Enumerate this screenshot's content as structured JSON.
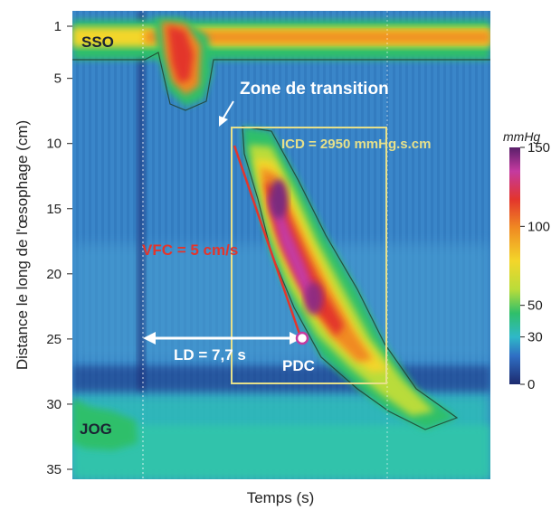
{
  "chart_data": {
    "type": "heatmap",
    "title": "",
    "xlabel": "Temps (s)",
    "ylabel": "Distance le long de l'œsophage (cm)",
    "yticks": [
      1,
      5,
      10,
      15,
      20,
      25,
      30,
      35
    ],
    "ylim": [
      0,
      36
    ],
    "colorbar": {
      "unit": "mmHg",
      "ticks": [
        0,
        30,
        50,
        100,
        150
      ],
      "range": [
        0,
        150
      ],
      "colors": [
        "#1d2a6e",
        "#2f6fc4",
        "#2fb8c8",
        "#2fbf6a",
        "#b9dc3a",
        "#f3d62a",
        "#f08a22",
        "#e3352c",
        "#c43aa0",
        "#5a1f6a"
      ]
    },
    "annotations": {
      "sso": "SSO",
      "jog": "JOG",
      "zone_transition": "Zone de transition",
      "icd": "ICD = 2950 mmHg.s.cm",
      "vfc": "VFC = 5 cm/s",
      "ld": "LD = 7,7 s",
      "pdc": "PDC"
    },
    "sso_band_cm": [
      1,
      3
    ],
    "jog_band_cm": [
      28,
      31
    ],
    "peristaltic_wave": {
      "start_cm": 9,
      "end_cm": 30,
      "peak_pressure_mmHg": 150,
      "pdc_cm": 25
    },
    "vfc_line_cm": [
      9,
      25
    ]
  }
}
